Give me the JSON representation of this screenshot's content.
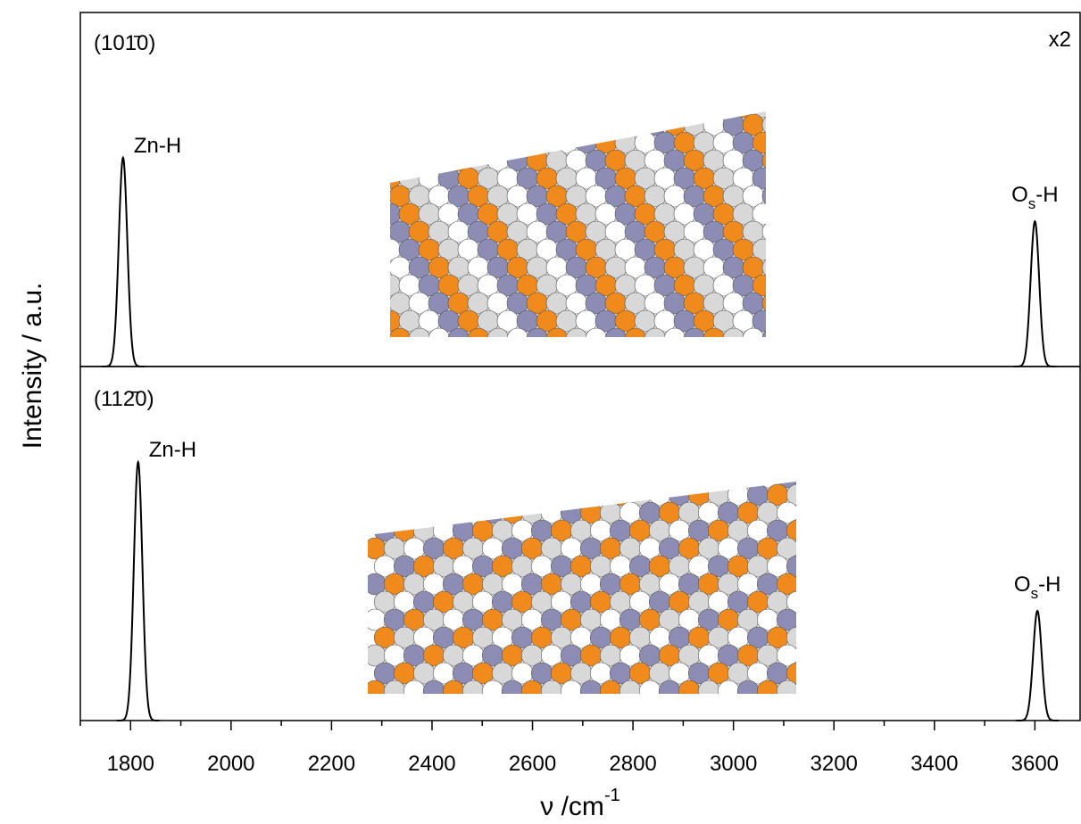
{
  "chart_data": [
    {
      "type": "spectrum",
      "title": "(101̄0)",
      "annotation": "x2",
      "ylabel": "Intensity / a.u.",
      "xlim": [
        1700,
        3690
      ],
      "ylim": [
        0,
        1
      ],
      "color": "#000000",
      "peaks": [
        {
          "label": {
            "text": "Zn-H"
          },
          "center": 1785,
          "height": 0.59,
          "fwhm": 20
        },
        {
          "label": {
            "text": "O",
            "sub": "s",
            "after": "-H"
          },
          "center": 3600,
          "height": 0.41,
          "fwhm": 20
        }
      ]
    },
    {
      "type": "spectrum",
      "title": "(112̄0)",
      "xlabel": {
        "text": "ν /cm",
        "sup": "-1"
      },
      "xlim": [
        1700,
        3690
      ],
      "ylim": [
        0,
        1
      ],
      "color": "#000000",
      "xticks": [
        1800,
        2000,
        2200,
        2400,
        2600,
        2800,
        3000,
        3200,
        3400,
        3600
      ],
      "xminorticks": [
        1700,
        1900,
        2100,
        2300,
        2500,
        2700,
        2900,
        3100,
        3300,
        3500
      ],
      "peaks": [
        {
          "label": {
            "text": "Zn-H"
          },
          "center": 1815,
          "height": 0.73,
          "fwhm": 20
        },
        {
          "label": {
            "text": "O",
            "sub": "s",
            "after": "-H"
          },
          "center": 3605,
          "height": 0.31,
          "fwhm": 20
        }
      ]
    }
  ]
}
